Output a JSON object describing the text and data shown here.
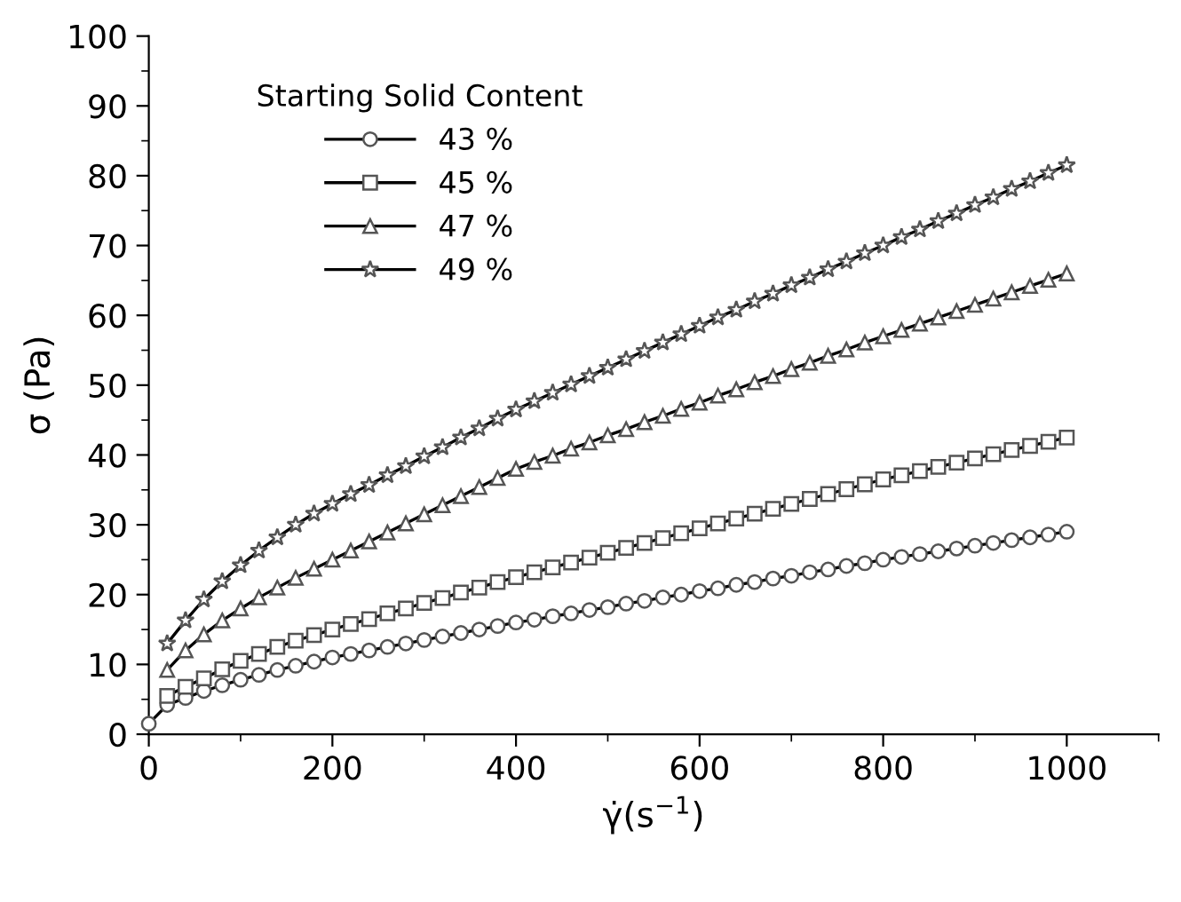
{
  "chart_data": {
    "type": "line",
    "xlabel": "γ̇(s$^{−1}$)",
    "ylabel": "σ (Pa)",
    "legend_title": "Starting Solid Content",
    "legend": "top left",
    "x": [
      0,
      20,
      40,
      60,
      80,
      100,
      120,
      140,
      160,
      180,
      200,
      220,
      240,
      260,
      280,
      300,
      320,
      340,
      360,
      380,
      400,
      420,
      440,
      460,
      480,
      500,
      520,
      540,
      560,
      580,
      600,
      620,
      640,
      660,
      680,
      700,
      720,
      740,
      760,
      780,
      800,
      820,
      840,
      860,
      880,
      900,
      920,
      940,
      960,
      980,
      1000
    ],
    "xlim": [
      0,
      1100
    ],
    "xticks": [
      0,
      200,
      400,
      600,
      800,
      1000
    ],
    "ylim": [
      0,
      100
    ],
    "yticks": [
      0,
      10,
      20,
      30,
      40,
      50,
      60,
      70,
      80,
      90,
      100
    ],
    "series": [
      {
        "name": "43 %",
        "color": "#000000",
        "marker": "circle",
        "values": [
          1.5,
          4.2,
          5.2,
          6.2,
          7.0,
          7.8,
          8.5,
          9.2,
          9.8,
          10.4,
          11.0,
          11.5,
          12.0,
          12.5,
          13.0,
          13.5,
          14.0,
          14.5,
          15.0,
          15.5,
          16.0,
          16.4,
          16.9,
          17.3,
          17.8,
          18.2,
          18.7,
          19.1,
          19.6,
          20.0,
          20.5,
          20.9,
          21.4,
          21.8,
          22.3,
          22.7,
          23.2,
          23.6,
          24.1,
          24.5,
          25.0,
          25.4,
          25.8,
          26.2,
          26.6,
          27.0,
          27.4,
          27.8,
          28.2,
          28.6,
          29.0
        ]
      },
      {
        "name": "45 %",
        "color": "#000000",
        "marker": "square",
        "values": [
          null,
          5.5,
          6.8,
          8.0,
          9.3,
          10.5,
          11.5,
          12.5,
          13.4,
          14.2,
          15.0,
          15.8,
          16.5,
          17.3,
          18.0,
          18.8,
          19.5,
          20.3,
          21.0,
          21.8,
          22.5,
          23.2,
          23.9,
          24.6,
          25.3,
          26.0,
          26.7,
          27.4,
          28.1,
          28.8,
          29.5,
          30.2,
          30.9,
          31.6,
          32.3,
          33.0,
          33.7,
          34.4,
          35.1,
          35.8,
          36.5,
          37.1,
          37.7,
          38.3,
          38.9,
          39.5,
          40.1,
          40.7,
          41.3,
          41.9,
          42.5
        ]
      },
      {
        "name": "47 %",
        "color": "#000000",
        "marker": "triangle",
        "values": [
          null,
          9.2,
          12.0,
          14.3,
          16.3,
          18.0,
          19.6,
          21.0,
          22.4,
          23.7,
          25.0,
          26.3,
          27.6,
          28.9,
          30.2,
          31.5,
          32.8,
          34.1,
          35.4,
          36.7,
          38.0,
          39.0,
          39.9,
          40.9,
          41.8,
          42.8,
          43.7,
          44.7,
          45.6,
          46.6,
          47.5,
          48.5,
          49.4,
          50.4,
          51.3,
          52.3,
          53.2,
          54.2,
          55.1,
          56.1,
          57.0,
          57.9,
          58.8,
          59.7,
          60.6,
          61.5,
          62.4,
          63.3,
          64.2,
          65.1,
          66.0
        ]
      },
      {
        "name": "49 %",
        "color": "#000000",
        "marker": "star",
        "values": [
          null,
          13.0,
          16.3,
          19.3,
          21.9,
          24.2,
          26.3,
          28.2,
          30.0,
          31.6,
          33.0,
          34.4,
          35.7,
          37.1,
          38.4,
          39.8,
          41.1,
          42.5,
          43.8,
          45.2,
          46.5,
          47.7,
          48.9,
          50.1,
          51.3,
          52.5,
          53.7,
          54.9,
          56.1,
          57.3,
          58.5,
          59.7,
          60.8,
          62.0,
          63.1,
          64.3,
          65.4,
          66.6,
          67.7,
          68.9,
          70.0,
          71.2,
          72.3,
          73.5,
          74.6,
          75.8,
          76.9,
          78.1,
          79.2,
          80.4,
          81.5
        ]
      }
    ]
  }
}
